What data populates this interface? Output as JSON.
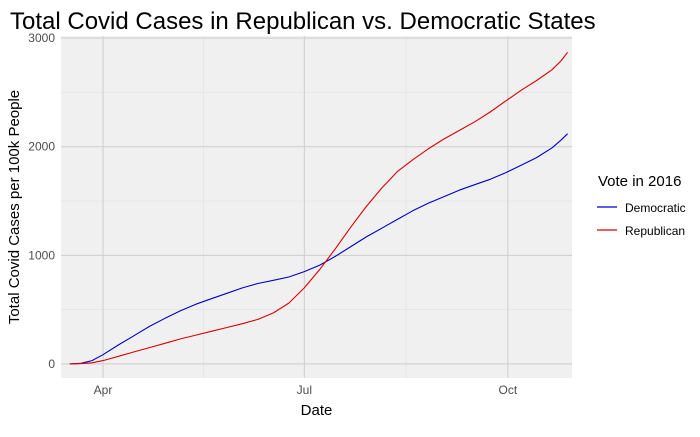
{
  "chart_data": {
    "type": "line",
    "title": "Total Covid Cases in Republican vs. Democratic States",
    "xlabel": "Date",
    "ylabel": "Total Covid Cases per 100k People",
    "x_ticks": [
      "Apr",
      "Jul",
      "Oct"
    ],
    "y_ticks": [
      "0",
      "1000",
      "2000",
      "3000"
    ],
    "xlim": [
      "2020-03-13",
      "2020-10-30"
    ],
    "ylim": [
      -130,
      3020
    ],
    "grid": true,
    "legend": {
      "title": "Vote in 2016",
      "position": "right"
    },
    "series": [
      {
        "name": "Democratic",
        "color": "#0000cc",
        "points": [
          [
            "2020-03-17",
            0
          ],
          [
            "2020-03-22",
            5
          ],
          [
            "2020-03-27",
            30
          ],
          [
            "2020-04-01",
            85
          ],
          [
            "2020-04-08",
            175
          ],
          [
            "2020-04-15",
            260
          ],
          [
            "2020-04-22",
            345
          ],
          [
            "2020-04-29",
            420
          ],
          [
            "2020-05-06",
            490
          ],
          [
            "2020-05-13",
            550
          ],
          [
            "2020-05-20",
            600
          ],
          [
            "2020-05-27",
            650
          ],
          [
            "2020-06-03",
            700
          ],
          [
            "2020-06-10",
            740
          ],
          [
            "2020-06-17",
            770
          ],
          [
            "2020-06-24",
            800
          ],
          [
            "2020-07-01",
            850
          ],
          [
            "2020-07-08",
            910
          ],
          [
            "2020-07-15",
            990
          ],
          [
            "2020-07-22",
            1080
          ],
          [
            "2020-07-29",
            1170
          ],
          [
            "2020-08-05",
            1250
          ],
          [
            "2020-08-12",
            1330
          ],
          [
            "2020-08-19",
            1410
          ],
          [
            "2020-08-26",
            1480
          ],
          [
            "2020-09-02",
            1540
          ],
          [
            "2020-09-09",
            1600
          ],
          [
            "2020-09-16",
            1650
          ],
          [
            "2020-09-23",
            1700
          ],
          [
            "2020-09-30",
            1760
          ],
          [
            "2020-10-07",
            1830
          ],
          [
            "2020-10-14",
            1900
          ],
          [
            "2020-10-21",
            1990
          ],
          [
            "2020-10-25",
            2060
          ],
          [
            "2020-10-28",
            2120
          ]
        ]
      },
      {
        "name": "Republican",
        "color": "#dd0000",
        "points": [
          [
            "2020-03-17",
            0
          ],
          [
            "2020-03-22",
            3
          ],
          [
            "2020-03-27",
            10
          ],
          [
            "2020-04-01",
            30
          ],
          [
            "2020-04-08",
            70
          ],
          [
            "2020-04-15",
            110
          ],
          [
            "2020-04-22",
            150
          ],
          [
            "2020-04-29",
            190
          ],
          [
            "2020-05-06",
            230
          ],
          [
            "2020-05-13",
            265
          ],
          [
            "2020-05-20",
            300
          ],
          [
            "2020-05-27",
            335
          ],
          [
            "2020-06-03",
            370
          ],
          [
            "2020-06-10",
            410
          ],
          [
            "2020-06-17",
            470
          ],
          [
            "2020-06-24",
            560
          ],
          [
            "2020-07-01",
            700
          ],
          [
            "2020-07-08",
            870
          ],
          [
            "2020-07-15",
            1060
          ],
          [
            "2020-07-22",
            1260
          ],
          [
            "2020-07-29",
            1450
          ],
          [
            "2020-08-05",
            1620
          ],
          [
            "2020-08-12",
            1770
          ],
          [
            "2020-08-19",
            1880
          ],
          [
            "2020-08-26",
            1980
          ],
          [
            "2020-09-02",
            2070
          ],
          [
            "2020-09-09",
            2150
          ],
          [
            "2020-09-16",
            2230
          ],
          [
            "2020-09-23",
            2320
          ],
          [
            "2020-09-30",
            2420
          ],
          [
            "2020-10-07",
            2520
          ],
          [
            "2020-10-14",
            2610
          ],
          [
            "2020-10-21",
            2710
          ],
          [
            "2020-10-25",
            2790
          ],
          [
            "2020-10-28",
            2870
          ]
        ]
      }
    ]
  }
}
